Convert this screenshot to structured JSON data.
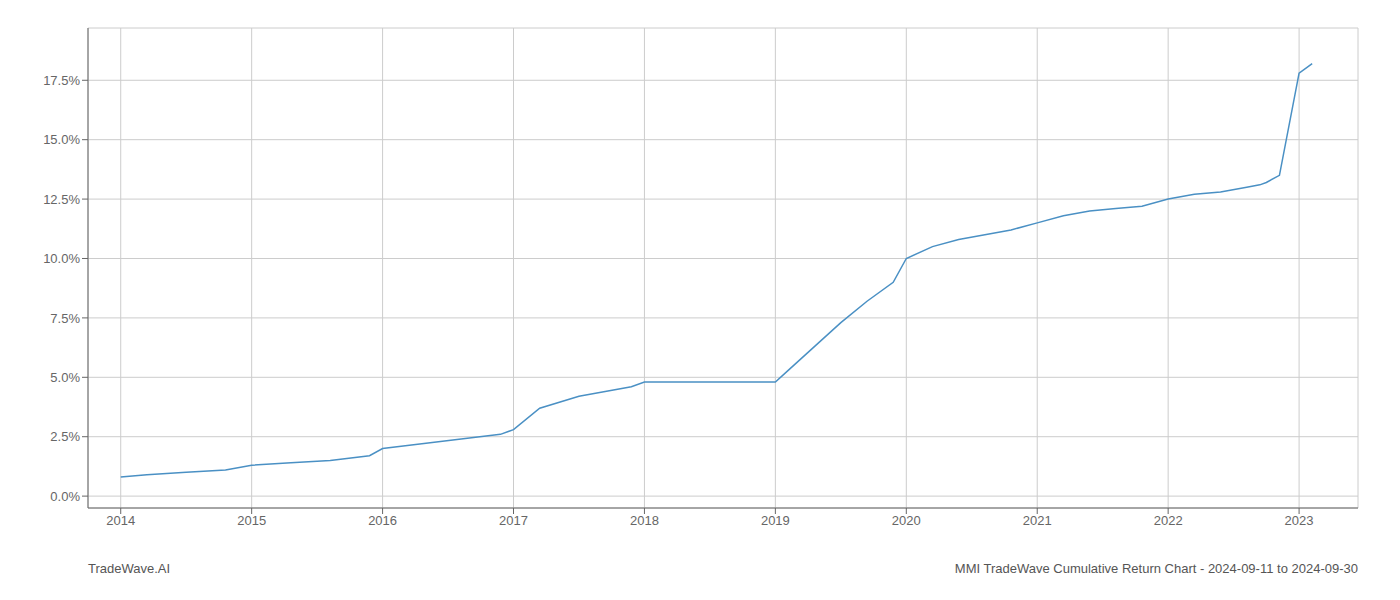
{
  "chart_data": {
    "type": "line",
    "x": [
      2014.0,
      2014.2,
      2014.5,
      2014.8,
      2015.0,
      2015.3,
      2015.6,
      2015.9,
      2016.0,
      2016.3,
      2016.6,
      2016.9,
      2017.0,
      2017.2,
      2017.5,
      2017.7,
      2017.9,
      2018.0,
      2018.1,
      2018.2,
      2018.3,
      2018.5,
      2018.7,
      2018.9,
      2019.0,
      2019.1,
      2019.3,
      2019.5,
      2019.7,
      2019.9,
      2020.0,
      2020.2,
      2020.4,
      2020.6,
      2020.8,
      2021.0,
      2021.2,
      2021.4,
      2021.6,
      2021.8,
      2022.0,
      2022.2,
      2022.4,
      2022.6,
      2022.7,
      2022.75,
      2022.85,
      2023.0,
      2023.1
    ],
    "values": [
      0.008,
      0.009,
      0.01,
      0.011,
      0.013,
      0.014,
      0.015,
      0.017,
      0.02,
      0.022,
      0.024,
      0.026,
      0.028,
      0.037,
      0.042,
      0.044,
      0.046,
      0.048,
      0.048,
      0.048,
      0.048,
      0.048,
      0.048,
      0.048,
      0.048,
      0.053,
      0.063,
      0.073,
      0.082,
      0.09,
      0.1,
      0.105,
      0.108,
      0.11,
      0.112,
      0.115,
      0.118,
      0.12,
      0.121,
      0.122,
      0.125,
      0.127,
      0.128,
      0.13,
      0.131,
      0.132,
      0.135,
      0.178,
      0.182
    ],
    "color": "#4a90c4",
    "xlim": [
      2013.75,
      2023.45
    ],
    "xticks": [
      2014,
      2015,
      2016,
      2017,
      2018,
      2019,
      2020,
      2021,
      2022,
      2023
    ],
    "ylim": [
      -0.005,
      0.197
    ],
    "yticks": [
      {
        "value": 0.0,
        "label": "0.0%"
      },
      {
        "value": 0.025,
        "label": "2.5%"
      },
      {
        "value": 0.05,
        "label": "5.0%"
      },
      {
        "value": 0.075,
        "label": "7.5%"
      },
      {
        "value": 0.1,
        "label": "10.0%"
      },
      {
        "value": 0.125,
        "label": "12.5%"
      },
      {
        "value": 0.15,
        "label": "15.0%"
      },
      {
        "value": 0.175,
        "label": "17.5%"
      }
    ],
    "grid": true,
    "annotations": [
      "TradeWave.AI",
      "MMI TradeWave Cumulative Return Chart - 2024-09-11 to 2024-09-30"
    ]
  }
}
